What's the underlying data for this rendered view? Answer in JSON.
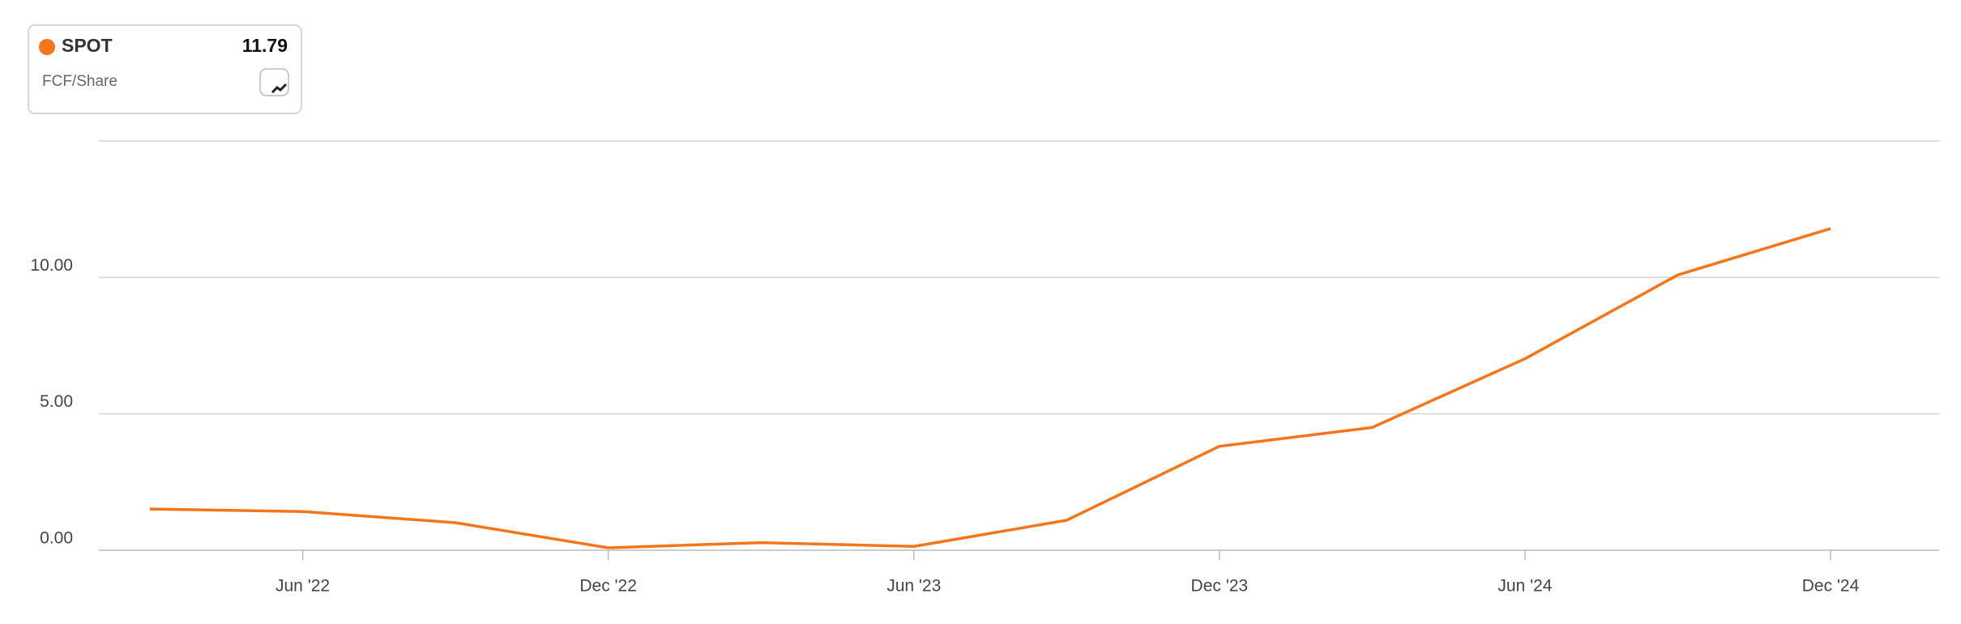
{
  "chart_data": {
    "type": "line",
    "categories": [
      null,
      "Jun '22",
      null,
      "Dec '22",
      null,
      "Jun '23",
      null,
      "Dec '23",
      null,
      "Jun '24",
      null,
      "Dec '24"
    ],
    "series": [
      {
        "name": "SPOT",
        "subtitle": "FCF/Share",
        "color": "#f5761a",
        "values": [
          1.51,
          1.42,
          1.01,
          0.09,
          0.28,
          0.14,
          1.1,
          3.81,
          4.5,
          7.02,
          10.09,
          11.79
        ]
      }
    ],
    "ylim": [
      0,
      15
    ],
    "yticks": [
      {
        "value": 0,
        "label": "0.00"
      },
      {
        "value": 5,
        "label": "5.00"
      },
      {
        "value": 10,
        "label": "10.00"
      }
    ],
    "grid": true
  }
}
